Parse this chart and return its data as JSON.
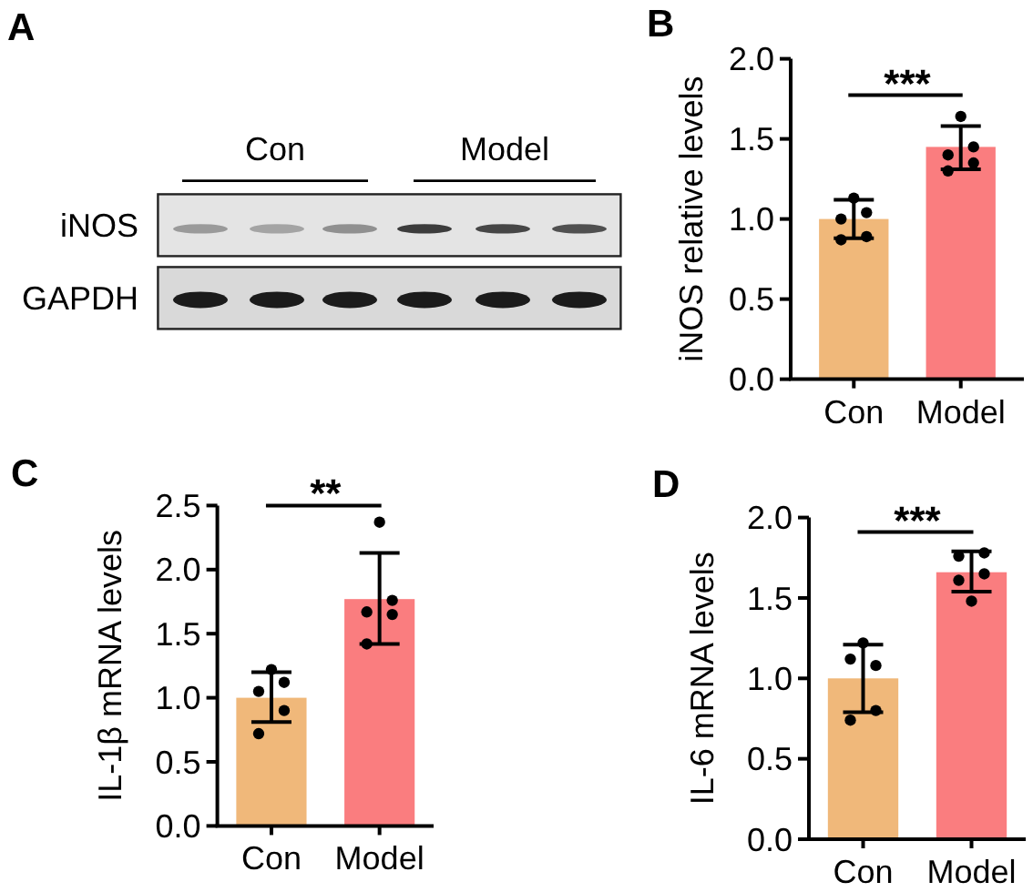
{
  "chart_data": [
    {
      "type": "other",
      "title": "A",
      "categories": [
        "Con",
        "Model"
      ],
      "y_categories": [
        "iNOS",
        "GAPDH"
      ]
    },
    {
      "type": "bar",
      "title": "B",
      "ylabel": "iNOS relative levels",
      "categories": [
        "Con",
        "Model"
      ],
      "series": [
        {
          "type": "bar",
          "values": [
            1.0,
            1.45
          ],
          "colors": [
            "#f0b87a",
            "#fa7d7f"
          ],
          "errors": [
            [
              0.88,
              1.12
            ],
            [
              1.31,
              1.58
            ]
          ]
        },
        {
          "type": "scatter",
          "x": [
            "Con",
            "Con",
            "Con",
            "Con",
            "Con",
            "Model",
            "Model",
            "Model",
            "Model",
            "Model"
          ],
          "values": [
            1.13,
            1.04,
            1.0,
            0.87,
            0.89,
            1.64,
            1.45,
            1.4,
            1.3,
            1.35
          ],
          "color": "#000000",
          "marker": "circle"
        }
      ],
      "ylim": [
        0,
        2
      ],
      "yticks": [
        {
          "value": 0,
          "label": "0.0"
        },
        {
          "value": 0.5,
          "label": "0.5"
        },
        {
          "value": 1,
          "label": "1.0"
        },
        {
          "value": 1.5,
          "label": "1.5"
        },
        {
          "value": 2,
          "label": "2.0"
        }
      ],
      "annotations": [
        "***"
      ]
    },
    {
      "type": "bar",
      "title": "C",
      "ylabel": "IL-1β mRNA levels",
      "categories": [
        "Con",
        "Model"
      ],
      "series": [
        {
          "type": "bar",
          "values": [
            1.0,
            1.77
          ],
          "colors": [
            "#f0b87a",
            "#fa7d7f"
          ],
          "errors": [
            [
              0.81,
              1.2
            ],
            [
              1.42,
              2.13
            ]
          ]
        },
        {
          "type": "scatter",
          "x": [
            "Con",
            "Con",
            "Con",
            "Con",
            "Con",
            "Model",
            "Model",
            "Model",
            "Model",
            "Model"
          ],
          "values": [
            1.22,
            1.12,
            1.05,
            0.72,
            0.9,
            2.37,
            1.76,
            1.67,
            1.42,
            1.65
          ],
          "color": "#000000",
          "marker": "circle"
        }
      ],
      "ylim": [
        0,
        2.5
      ],
      "yticks": [
        {
          "value": 0,
          "label": "0.0"
        },
        {
          "value": 0.5,
          "label": "0.5"
        },
        {
          "value": 1,
          "label": "1.0"
        },
        {
          "value": 1.5,
          "label": "1.5"
        },
        {
          "value": 2,
          "label": "2.0"
        },
        {
          "value": 2.5,
          "label": "2.5"
        }
      ],
      "annotations": [
        "**"
      ]
    },
    {
      "type": "bar",
      "title": "D",
      "ylabel": "IL-6 mRNA levels",
      "categories": [
        "Con",
        "Model"
      ],
      "series": [
        {
          "type": "bar",
          "values": [
            1.0,
            1.66
          ],
          "colors": [
            "#f0b87a",
            "#fa7d7f"
          ],
          "errors": [
            [
              0.79,
              1.21
            ],
            [
              1.54,
              1.79
            ]
          ]
        },
        {
          "type": "scatter",
          "x": [
            "Con",
            "Con",
            "Con",
            "Con",
            "Con",
            "Model",
            "Model",
            "Model",
            "Model",
            "Model"
          ],
          "values": [
            1.22,
            1.08,
            1.12,
            0.74,
            0.8,
            1.48,
            1.78,
            1.76,
            1.61,
            1.65
          ],
          "color": "#000000",
          "marker": "circle"
        }
      ],
      "ylim": [
        0,
        2
      ],
      "yticks": [
        {
          "value": 0,
          "label": "0.0"
        },
        {
          "value": 0.5,
          "label": "0.5"
        },
        {
          "value": 1,
          "label": "1.0"
        },
        {
          "value": 1.5,
          "label": "1.5"
        },
        {
          "value": 2,
          "label": "2.0"
        }
      ],
      "annotations": [
        "***"
      ]
    }
  ]
}
